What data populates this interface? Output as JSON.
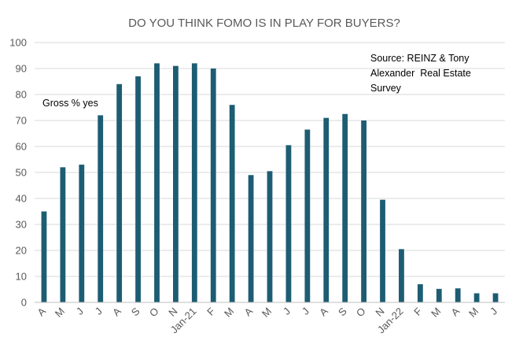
{
  "chart_data": {
    "type": "bar",
    "title": "DO YOU THINK FOMO IS IN PLAY FOR BUYERS?",
    "series_label": "Gross % yes",
    "source_lines": [
      "Source: REINZ & Tony",
      "Alexander  Real Estate",
      "Survey"
    ],
    "xlabel": "",
    "ylabel": "",
    "ylim": [
      0,
      100
    ],
    "yticks": [
      0,
      10,
      20,
      30,
      40,
      50,
      60,
      70,
      80,
      90,
      100
    ],
    "grid": true,
    "categories": [
      "A",
      "M",
      "J",
      "J",
      "A",
      "S",
      "O",
      "N",
      "Jan-21",
      "F",
      "M",
      "A",
      "M",
      "J",
      "J",
      "A",
      "S",
      "O",
      "N",
      "Jan-22",
      "F",
      "M",
      "A",
      "M",
      "J"
    ],
    "values": [
      35,
      52,
      53,
      72,
      84,
      87,
      92,
      91,
      92,
      90,
      76,
      49,
      50.5,
      60.5,
      66.5,
      71,
      72.5,
      70,
      39.5,
      20.5,
      7,
      5.2,
      5.4,
      3.5,
      3.5
    ],
    "colors": {
      "bar": "#1d5d73",
      "grid": "#d9d9d9",
      "axis": "#bfbfbf",
      "text": "#595959"
    }
  }
}
